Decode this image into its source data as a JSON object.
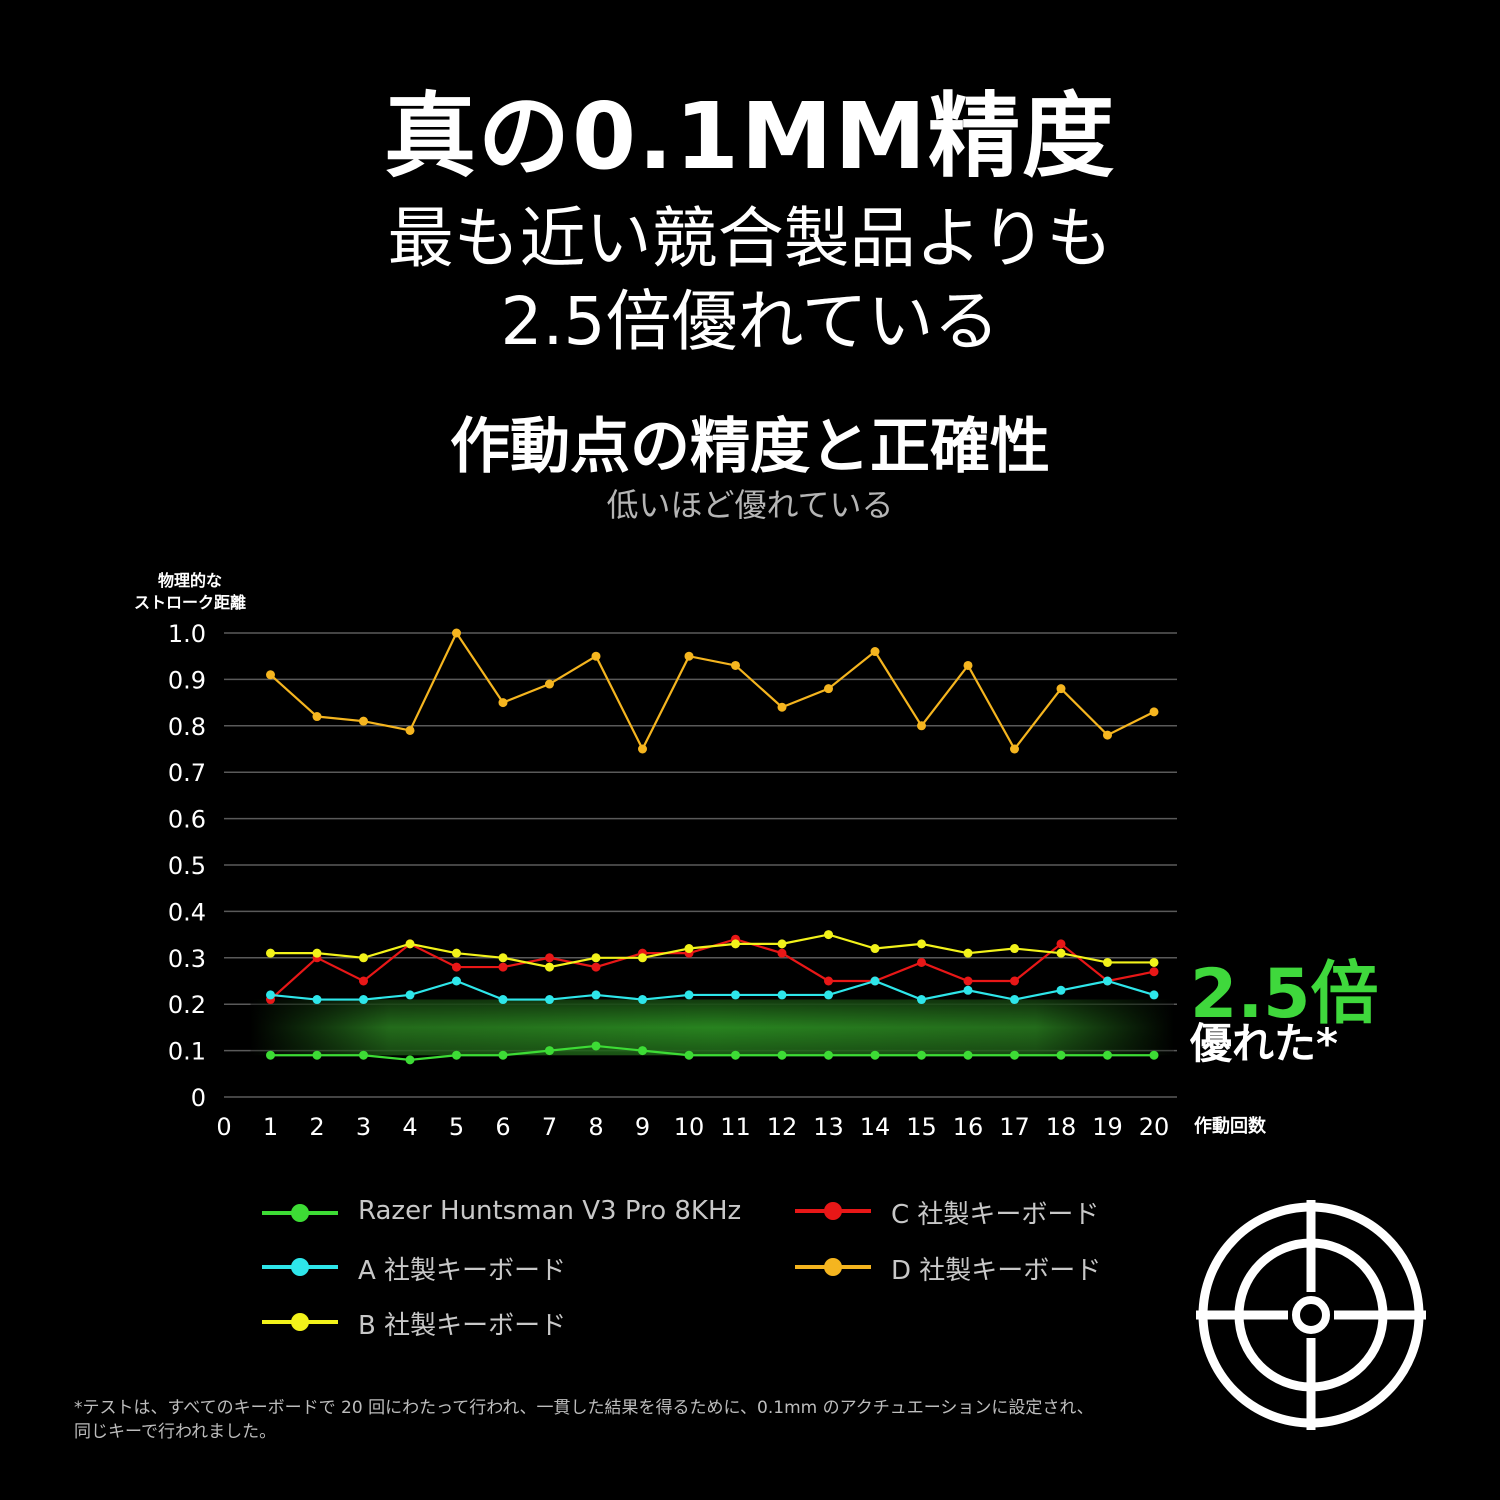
{
  "header": {
    "headline": "真の0.1MM精度",
    "subline1": "最も近い競合製品よりも",
    "subline2": "2.5倍優れている"
  },
  "chart_data": {
    "type": "line",
    "title": "作動点の精度と正確性",
    "subtitle": "低いほど優れている",
    "ylabel": "物理的な\nストローク距離",
    "xlabel": "作動回数",
    "ylim": [
      0,
      1.0
    ],
    "yticks": [
      "0",
      "0.1",
      "0.2",
      "0.3",
      "0.4",
      "0.5",
      "0.6",
      "0.7",
      "0.8",
      "0.9",
      "1.0"
    ],
    "xticks": [
      "0",
      "1",
      "2",
      "3",
      "4",
      "5",
      "6",
      "7",
      "8",
      "9",
      "10",
      "11",
      "12",
      "13",
      "14",
      "15",
      "16",
      "17",
      "18",
      "19",
      "20"
    ],
    "grid": true,
    "x": [
      1,
      2,
      3,
      4,
      5,
      6,
      7,
      8,
      9,
      10,
      11,
      12,
      13,
      14,
      15,
      16,
      17,
      18,
      19,
      20
    ],
    "series": [
      {
        "name": "Razer Huntsman V3 Pro 8KHz",
        "color": "#3ddc35",
        "values": [
          0.09,
          0.09,
          0.09,
          0.08,
          0.09,
          0.09,
          0.1,
          0.11,
          0.1,
          0.09,
          0.09,
          0.09,
          0.09,
          0.09,
          0.09,
          0.09,
          0.09,
          0.09,
          0.09,
          0.09
        ]
      },
      {
        "name": "A 社製キーボード",
        "color": "#2ee6ea",
        "values": [
          0.22,
          0.21,
          0.21,
          0.22,
          0.25,
          0.21,
          0.21,
          0.22,
          0.21,
          0.22,
          0.22,
          0.22,
          0.22,
          0.25,
          0.21,
          0.23,
          0.21,
          0.23,
          0.25,
          0.22
        ]
      },
      {
        "name": "B 社製キーボード",
        "color": "#f2f21a",
        "values": [
          0.31,
          0.31,
          0.3,
          0.33,
          0.31,
          0.3,
          0.28,
          0.3,
          0.3,
          0.32,
          0.33,
          0.33,
          0.35,
          0.32,
          0.33,
          0.31,
          0.32,
          0.31,
          0.29,
          0.29
        ]
      },
      {
        "name": "C 社製キーボード",
        "color": "#e81717",
        "values": [
          0.21,
          0.3,
          0.25,
          0.33,
          0.28,
          0.28,
          0.3,
          0.28,
          0.31,
          0.31,
          0.34,
          0.31,
          0.25,
          0.25,
          0.29,
          0.25,
          0.25,
          0.33,
          0.25,
          0.27
        ]
      },
      {
        "name": "D 社製キーボード",
        "color": "#f5b51f",
        "values": [
          0.91,
          0.82,
          0.81,
          0.79,
          1.0,
          0.85,
          0.89,
          0.95,
          0.75,
          0.95,
          0.93,
          0.84,
          0.88,
          0.96,
          0.8,
          0.93,
          0.75,
          0.88,
          0.78,
          0.83
        ]
      }
    ],
    "callout": {
      "value": "2.5倍",
      "text": "優れた*",
      "color": "#3fd83c"
    },
    "legend_position": "bottom"
  },
  "footnote": "*テストは、すべてのキーボードで 20 回にわたって行われ、一貫した結果を得るために、0.1mm のアクチュエーションに設定され、同じキーで行われました。",
  "icon": {
    "name": "target-icon"
  }
}
